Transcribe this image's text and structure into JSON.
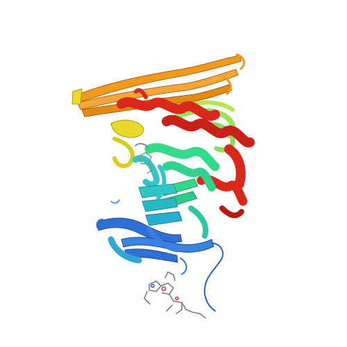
{
  "image": {
    "subject": "protein-ribbon-structure",
    "background": "#ffffff",
    "color_scheme": "rainbow N-to-C",
    "colors": {
      "blue": "#2f6fd6",
      "light_blue": "#33a6d8",
      "cyan": "#2fc6c6",
      "green": "#35d98a",
      "lime": "#9fe05a",
      "yellow": "#e9d92b",
      "orange": "#f09a1c",
      "red": "#d9281c",
      "ligand": "#7a7a7a"
    }
  }
}
